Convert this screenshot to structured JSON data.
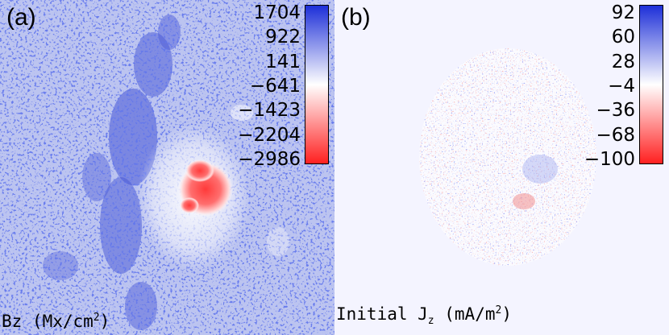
{
  "panels": [
    {
      "label": "(a)",
      "quantity_label": {
        "main": "Bz (Mx/cm",
        "sup": "2",
        "end": ")"
      },
      "colorbar": {
        "ticks": [
          "1704",
          "922",
          "141",
          "−641",
          "−1423",
          "−2204",
          "−2986"
        ],
        "colors": [
          "#1d2fd8",
          "#ffffff",
          "#ff2020"
        ],
        "min": -2986,
        "max": 1704
      },
      "background_color": "#bcc4f0"
    },
    {
      "label": "(b)",
      "quantity_label": {
        "main": "Initial J",
        "sub": "z",
        "mid": " (mA/m",
        "sup": "2",
        "end": ")"
      },
      "colorbar": {
        "ticks": [
          "92",
          "60",
          "28",
          "−4",
          "−36",
          "−68",
          "−100"
        ],
        "colors": [
          "#1d2fd8",
          "#ffffff",
          "#ff2020"
        ],
        "min": -100,
        "max": 92
      },
      "background_color": "#f4f4ff"
    }
  ]
}
